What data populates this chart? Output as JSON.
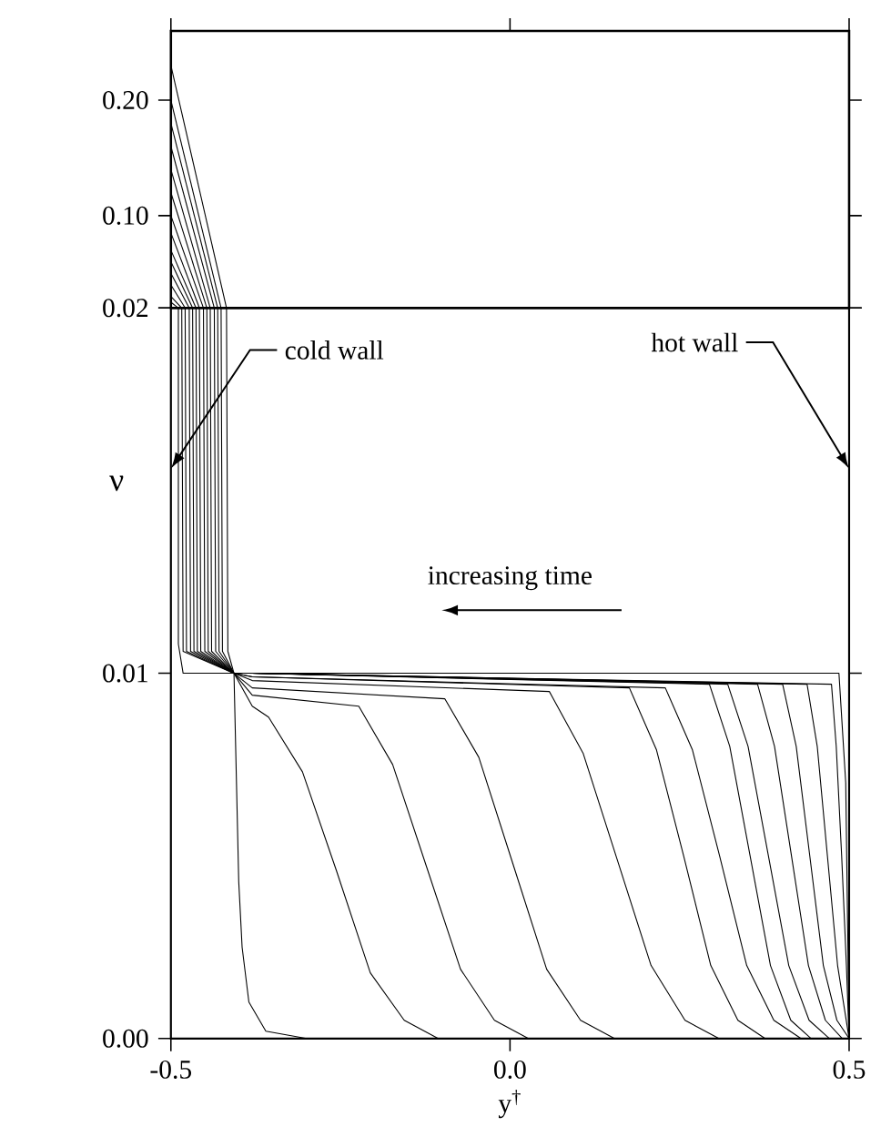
{
  "chart_data": [
    {
      "type": "line",
      "marker": "none",
      "xlim": [
        -0.5,
        0.5
      ],
      "xticks": [
        {
          "value": -0.5,
          "label": null
        },
        {
          "value": 0,
          "label": null
        },
        {
          "value": 0.5,
          "label": null
        }
      ],
      "ylim": [
        0.02,
        0.26
      ],
      "yticks": [
        {
          "value": 0.02,
          "label": "0.02"
        },
        {
          "value": 0.1,
          "label": "0.10"
        },
        {
          "value": 0.2,
          "label": "0.20"
        }
      ],
      "tick_labels": "y",
      "series": [
        {
          "color": "#000000",
          "x": [
            -0.5,
            -0.418
          ],
          "values": [
            0.23,
            0.02
          ]
        },
        {
          "color": "#000000",
          "x": [
            -0.5,
            -0.426
          ],
          "values": [
            0.2,
            0.02
          ]
        },
        {
          "color": "#000000",
          "x": [
            -0.5,
            -0.431
          ],
          "values": [
            0.18,
            0.02
          ]
        },
        {
          "color": "#000000",
          "x": [
            -0.5,
            -0.436
          ],
          "values": [
            0.16,
            0.02
          ]
        },
        {
          "color": "#000000",
          "x": [
            -0.5,
            -0.442
          ],
          "values": [
            0.14,
            0.02
          ]
        },
        {
          "color": "#000000",
          "x": [
            -0.5,
            -0.447
          ],
          "values": [
            0.12,
            0.02
          ]
        },
        {
          "color": "#000000",
          "x": [
            -0.5,
            -0.452
          ],
          "values": [
            0.1,
            0.02
          ]
        },
        {
          "color": "#000000",
          "x": [
            -0.5,
            -0.458
          ],
          "values": [
            0.085,
            0.02
          ]
        },
        {
          "color": "#000000",
          "x": [
            -0.5,
            -0.463
          ],
          "values": [
            0.07,
            0.02
          ]
        },
        {
          "color": "#000000",
          "x": [
            -0.5,
            -0.468
          ],
          "values": [
            0.06,
            0.02
          ]
        },
        {
          "color": "#000000",
          "x": [
            -0.5,
            -0.473
          ],
          "values": [
            0.05,
            0.02
          ]
        },
        {
          "color": "#000000",
          "x": [
            -0.5,
            -0.479
          ],
          "values": [
            0.04,
            0.02
          ]
        },
        {
          "color": "#000000",
          "x": [
            -0.5,
            -0.484
          ],
          "values": [
            0.03,
            0.02
          ]
        },
        {
          "color": "#000000",
          "x": [
            -0.5,
            -0.489
          ],
          "values": [
            0.025,
            0.02
          ]
        }
      ]
    },
    {
      "type": "line",
      "marker": "none",
      "xlabel": "y$^{†}$",
      "ylabel": "ν",
      "xlim": [
        -0.5,
        0.5
      ],
      "xticks": [
        {
          "value": -0.5,
          "label": "-0.5"
        },
        {
          "value": 0,
          "label": "0.0"
        },
        {
          "value": 0.5,
          "label": "0.5"
        }
      ],
      "ylim": [
        0,
        0.02
      ],
      "yticks": [
        {
          "value": 0,
          "label": "0.00"
        },
        {
          "value": 0.01,
          "label": "0.01"
        },
        {
          "value": 0.02,
          "label": null
        }
      ],
      "annotations": [
        {
          "text": "cold wall",
          "x": -0.5,
          "y": 0.0156
        },
        "hot wall",
        "increasing time"
      ],
      "series": [
        {
          "color": "#000000",
          "x": [
            -0.418,
            -0.416,
            -0.407,
            -0.4,
            -0.395,
            -0.385,
            -0.36,
            -0.3,
            0.5
          ],
          "values": [
            0.02,
            0.0106,
            0.01,
            0.0043,
            0.0025,
            0.001,
            0.0002,
            0.0,
            0.0
          ]
        },
        {
          "color": "#000000",
          "x": [
            -0.426,
            -0.424,
            -0.407,
            -0.38,
            -0.356,
            -0.306,
            -0.256,
            -0.206,
            -0.156,
            -0.106,
            0.5
          ],
          "values": [
            0.02,
            0.0106,
            0.01,
            0.0091,
            0.0088,
            0.0073,
            0.0046,
            0.0018,
            0.0005,
            0.0,
            0.0
          ]
        },
        {
          "color": "#000000",
          "x": [
            -0.431,
            -0.429,
            -0.407,
            -0.38,
            -0.223,
            -0.173,
            -0.123,
            -0.073,
            -0.023,
            0.027,
            0.5
          ],
          "values": [
            0.02,
            0.0106,
            0.01,
            0.0094,
            0.0091,
            0.0075,
            0.0047,
            0.0019,
            0.0005,
            0.0,
            0.0
          ]
        },
        {
          "color": "#000000",
          "x": [
            -0.436,
            -0.434,
            -0.407,
            -0.38,
            -0.096,
            -0.046,
            0.004,
            0.054,
            0.104,
            0.154,
            0.5
          ],
          "values": [
            0.02,
            0.0106,
            0.01,
            0.0096,
            0.0093,
            0.0077,
            0.0048,
            0.0019,
            0.0005,
            0.0,
            0.0
          ]
        },
        {
          "color": "#000000",
          "x": [
            -0.442,
            -0.44,
            -0.407,
            -0.38,
            0.058,
            0.108,
            0.158,
            0.208,
            0.258,
            0.308,
            0.5
          ],
          "values": [
            0.02,
            0.0106,
            0.01,
            0.0098,
            0.0095,
            0.0078,
            0.0049,
            0.002,
            0.0005,
            0.0,
            0.0
          ]
        },
        {
          "color": "#000000",
          "x": [
            -0.447,
            -0.445,
            -0.407,
            -0.38,
            0.176,
            0.216,
            0.256,
            0.296,
            0.336,
            0.376,
            0.5
          ],
          "values": [
            0.02,
            0.0106,
            0.01,
            0.0099,
            0.0096,
            0.0079,
            0.005,
            0.002,
            0.0005,
            0.0,
            0.0
          ]
        },
        {
          "color": "#000000",
          "x": [
            -0.452,
            -0.45,
            -0.407,
            -0.38,
            0.229,
            0.269,
            0.309,
            0.349,
            0.389,
            0.429,
            0.5
          ],
          "values": [
            0.02,
            0.0106,
            0.01,
            0.0099,
            0.0096,
            0.0079,
            0.005,
            0.002,
            0.0005,
            0.0,
            0.0
          ]
        },
        {
          "color": "#000000",
          "x": [
            -0.458,
            -0.456,
            -0.407,
            -0.38,
            0.294,
            0.324,
            0.354,
            0.384,
            0.414,
            0.444,
            0.5
          ],
          "values": [
            0.02,
            0.0106,
            0.01,
            0.01,
            0.0097,
            0.008,
            0.005,
            0.002,
            0.0005,
            0.0,
            0.0
          ]
        },
        {
          "color": "#000000",
          "x": [
            -0.463,
            -0.461,
            -0.407,
            -0.38,
            0.321,
            0.351,
            0.381,
            0.411,
            0.441,
            0.471,
            0.5
          ],
          "values": [
            0.02,
            0.0106,
            0.01,
            0.01,
            0.0097,
            0.008,
            0.005,
            0.002,
            0.0005,
            0.0,
            0.0
          ]
        },
        {
          "color": "#000000",
          "x": [
            -0.468,
            -0.466,
            -0.407,
            -0.38,
            0.365,
            0.39,
            0.415,
            0.44,
            0.465,
            0.49,
            0.5
          ],
          "values": [
            0.02,
            0.0106,
            0.01,
            0.01,
            0.0097,
            0.008,
            0.005,
            0.002,
            0.0005,
            0.0,
            0.0
          ]
        },
        {
          "color": "#000000",
          "x": [
            -0.473,
            -0.471,
            -0.407,
            -0.38,
            0.402,
            0.422,
            0.442,
            0.462,
            0.482,
            0.5
          ],
          "values": [
            0.02,
            0.0106,
            0.01,
            0.01,
            0.0097,
            0.008,
            0.005,
            0.002,
            0.0005,
            0.0
          ]
        },
        {
          "color": "#000000",
          "x": [
            -0.479,
            -0.477,
            -0.407,
            -0.38,
            0.438,
            0.453,
            0.468,
            0.483,
            0.5
          ],
          "values": [
            0.02,
            0.0106,
            0.01,
            0.01,
            0.0097,
            0.008,
            0.005,
            0.002,
            0.0
          ]
        },
        {
          "color": "#000000",
          "x": [
            -0.484,
            -0.482,
            -0.407,
            -0.38,
            0.474,
            0.481,
            0.489,
            0.496,
            0.5
          ],
          "values": [
            0.02,
            0.0106,
            0.01,
            0.01,
            0.0097,
            0.008,
            0.005,
            0.002,
            0.0
          ]
        },
        {
          "color": "#000000",
          "x": [
            -0.489,
            -0.489,
            -0.482,
            0.485,
            0.495,
            0.5
          ],
          "values": [
            0.02,
            0.0108,
            0.01,
            0.01,
            0.007,
            0.0
          ]
        }
      ]
    }
  ]
}
